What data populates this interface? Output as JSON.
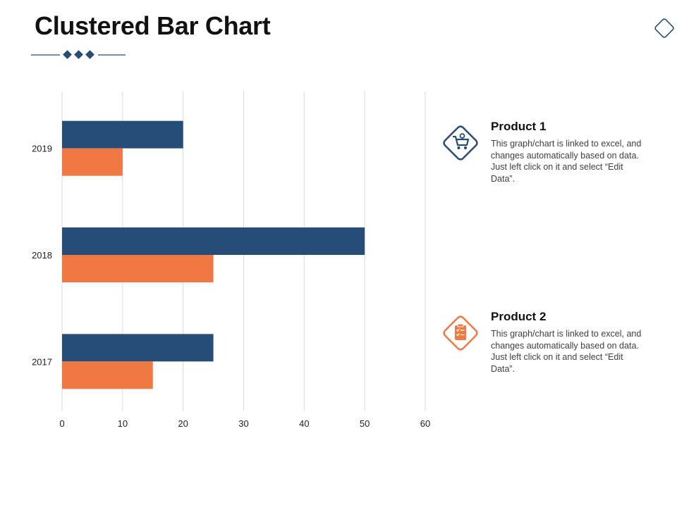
{
  "title": "Clustered Bar Chart",
  "colors": {
    "series1": "#264D77",
    "series2": "#F07843",
    "accent": "#264D77",
    "grid": "#D9D9D9"
  },
  "chart_data": {
    "type": "bar",
    "orientation": "horizontal",
    "categories": [
      "2019",
      "2018",
      "2017"
    ],
    "series": [
      {
        "name": "Product 1",
        "values": [
          20,
          50,
          25
        ]
      },
      {
        "name": "Product 2",
        "values": [
          10,
          25,
          15
        ]
      }
    ],
    "xlim": [
      0,
      60
    ],
    "xticks": [
      "0",
      "10",
      "20",
      "30",
      "40",
      "50",
      "60"
    ],
    "grid": "vertical",
    "legend_placement": "right"
  },
  "legend": [
    {
      "title": "Product 1",
      "text": "This graph/chart is linked to excel, and changes automatically based on data. Just left click on it and select “Edit Data”.",
      "icon": "shopping-cart-icon"
    },
    {
      "title": "Product 2",
      "text": "This graph/chart is linked to excel, and changes automatically based on data. Just left click on it and select “Edit Data”.",
      "icon": "clipboard-checklist-icon"
    }
  ]
}
